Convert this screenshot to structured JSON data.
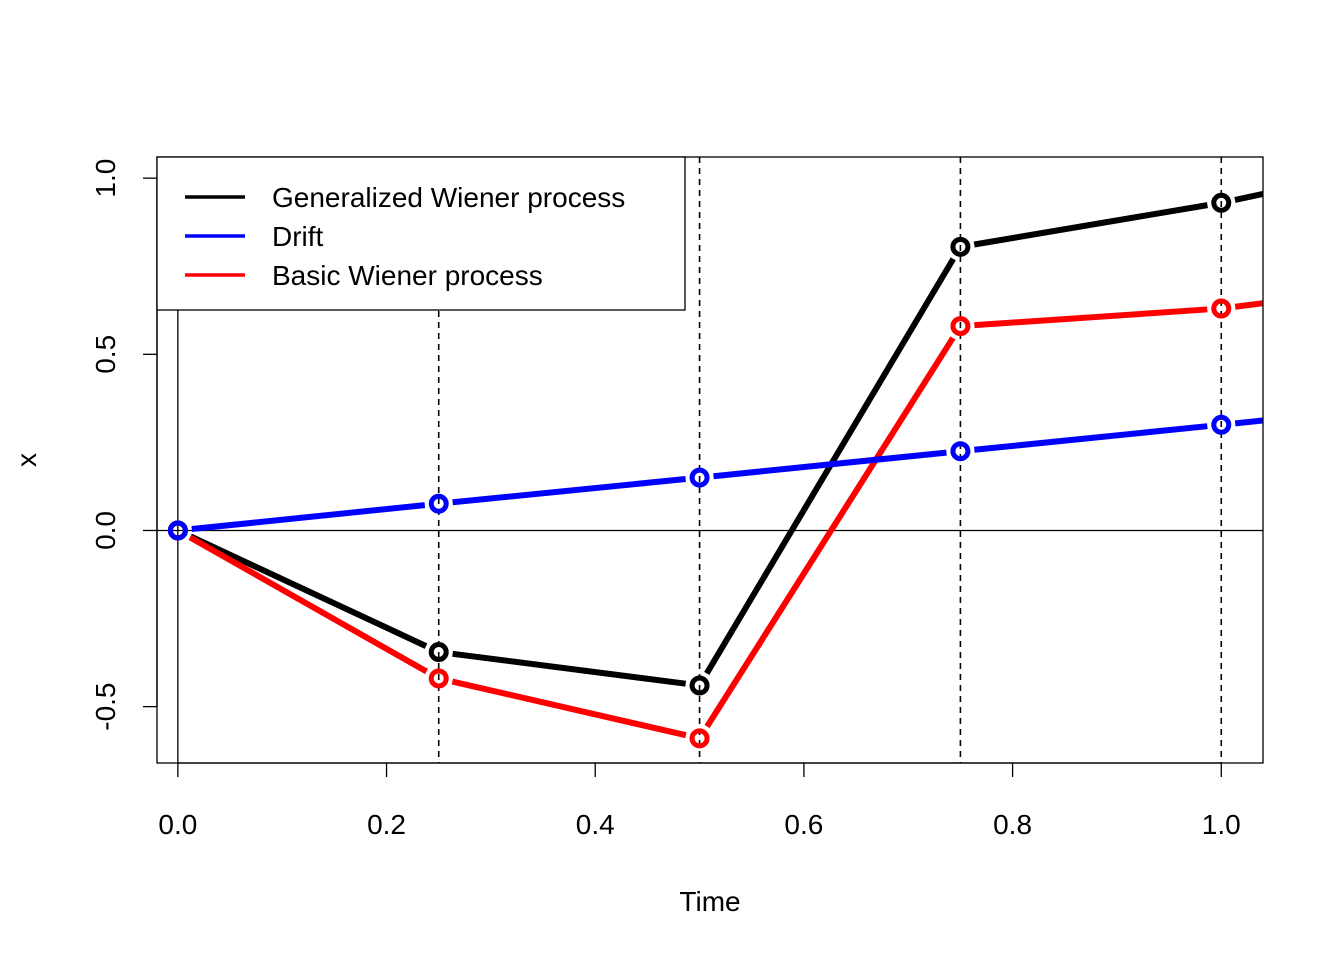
{
  "chart_data": {
    "type": "line",
    "title": "",
    "xlabel": "Time",
    "ylabel": "x",
    "xlim": [
      -0.02,
      1.04
    ],
    "ylim": [
      -0.66,
      1.06
    ],
    "xticks": [
      0.0,
      0.2,
      0.4,
      0.6,
      0.8,
      1.0
    ],
    "xtick_labels": [
      "0.0",
      "0.2",
      "0.4",
      "0.6",
      "0.8",
      "1.0"
    ],
    "yticks": [
      -0.5,
      0.0,
      0.5,
      1.0
    ],
    "ytick_labels": [
      "-0.5",
      "0.0",
      "0.5",
      "1.0"
    ],
    "reference_lines": {
      "vertical_solid": [
        0.0
      ],
      "horizontal_solid": [
        0.0
      ],
      "vertical_dashed": [
        0.25,
        0.5,
        0.75,
        1.0
      ]
    },
    "grid": false,
    "legend_position": "top-left",
    "x": [
      0.0,
      0.25,
      0.5,
      0.75,
      1.0
    ],
    "series": [
      {
        "name": "Generalized Wiener process",
        "color": "#000000",
        "values": [
          0.0,
          -0.345,
          -0.44,
          0.805,
          0.93
        ],
        "extends_to": [
          1.04,
          0.955
        ]
      },
      {
        "name": "Drift",
        "color": "#0000FF",
        "values": [
          0.0,
          0.076,
          0.15,
          0.225,
          0.3
        ],
        "extends_to": [
          1.04,
          0.312
        ]
      },
      {
        "name": "Basic Wiener process",
        "color": "#FF0000",
        "values": [
          0.0,
          -0.42,
          -0.59,
          0.58,
          0.63
        ],
        "extends_to": [
          1.04,
          0.645
        ]
      }
    ]
  }
}
